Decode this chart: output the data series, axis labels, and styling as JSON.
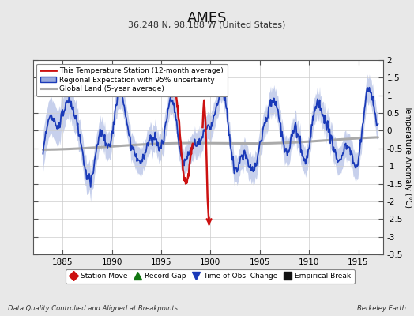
{
  "title": "AMES",
  "subtitle": "36.248 N, 98.188 W (United States)",
  "xlabel_note": "Data Quality Controlled and Aligned at Breakpoints",
  "xlabel_note_right": "Berkeley Earth",
  "ylabel": "Temperature Anomaly (°C)",
  "xlim": [
    1882.0,
    1917.5
  ],
  "ylim": [
    -3.5,
    2.0
  ],
  "yticks": [
    -3.5,
    -3.0,
    -2.5,
    -2.0,
    -1.5,
    -1.0,
    -0.5,
    0.0,
    0.5,
    1.0,
    1.5,
    2.0
  ],
  "ytick_labels": [
    "-3.5",
    "-3",
    "-2.5",
    "-2",
    "-1.5",
    "-1",
    "-0.5",
    "0",
    "0.5",
    "1",
    "1.5",
    "2"
  ],
  "xticks": [
    1885,
    1890,
    1895,
    1900,
    1905,
    1910,
    1915
  ],
  "bg_color": "#e8e8e8",
  "plot_bg_color": "#ffffff",
  "regional_line_color": "#1a3ab8",
  "regional_fill_color": "#99aadd",
  "station_line_color": "#cc1111",
  "global_line_color": "#aaaaaa",
  "legend_station": "This Temperature Station (12-month average)",
  "legend_regional": "Regional Expectation with 95% uncertainty",
  "legend_global": "Global Land (5-year average)",
  "marker_legend": [
    {
      "label": "Station Move",
      "color": "#cc1111",
      "marker": "D"
    },
    {
      "label": "Record Gap",
      "color": "#117711",
      "marker": "^"
    },
    {
      "label": "Time of Obs. Change",
      "color": "#1a3ab8",
      "marker": "v"
    },
    {
      "label": "Empirical Break",
      "color": "#111111",
      "marker": "s"
    }
  ],
  "obs_change_x": 1899.0
}
